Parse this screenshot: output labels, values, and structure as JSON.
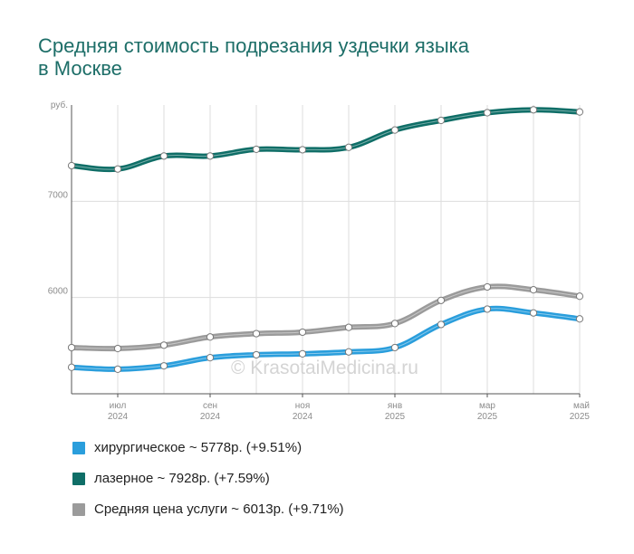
{
  "title_lines": [
    "Средняя стоимость подрезания уздечки языка",
    "в Москве"
  ],
  "watermark": "© KrasotaiMedicina.ru",
  "chart_data": {
    "type": "line",
    "title": "Средняя стоимость подрезания уздечки языка в Москве",
    "ylabel": "руб.",
    "ylim": [
      5000,
      8000
    ],
    "yticks": [
      7000,
      6000
    ],
    "x_ticks": [
      {
        "month": "июл",
        "year": "2024"
      },
      {
        "month": "сен",
        "year": "2024"
      },
      {
        "month": "ноя",
        "year": "2024"
      },
      {
        "month": "янв",
        "year": "2025"
      },
      {
        "month": "мар",
        "year": "2025"
      },
      {
        "month": "май",
        "year": "2025"
      }
    ],
    "grid": true,
    "series": [
      {
        "name": "лазерное",
        "color": "#0f6e67",
        "values": [
          7370,
          7335,
          7470,
          7470,
          7540,
          7535,
          7560,
          7740,
          7840,
          7920,
          7950,
          7928
        ]
      },
      {
        "name": "Средняя цена услуги",
        "color": "#9b9b9b",
        "values": [
          5480,
          5470,
          5505,
          5590,
          5625,
          5640,
          5690,
          5730,
          5970,
          6110,
          6080,
          6013
        ]
      },
      {
        "name": "хирургическое",
        "color": "#2a9edc",
        "values": [
          5275,
          5255,
          5290,
          5375,
          5405,
          5415,
          5435,
          5480,
          5720,
          5880,
          5840,
          5778
        ]
      }
    ]
  },
  "legend": [
    {
      "label": "хирургическое ~ 5778р. (+9.51%)",
      "color": "#2a9edc"
    },
    {
      "label": "лазерное ~ 7928р. (+7.59%)",
      "color": "#0f6e67"
    },
    {
      "label": "Средняя цена услуги ~ 6013р. (+9.71%)",
      "color": "#9b9b9b"
    }
  ]
}
